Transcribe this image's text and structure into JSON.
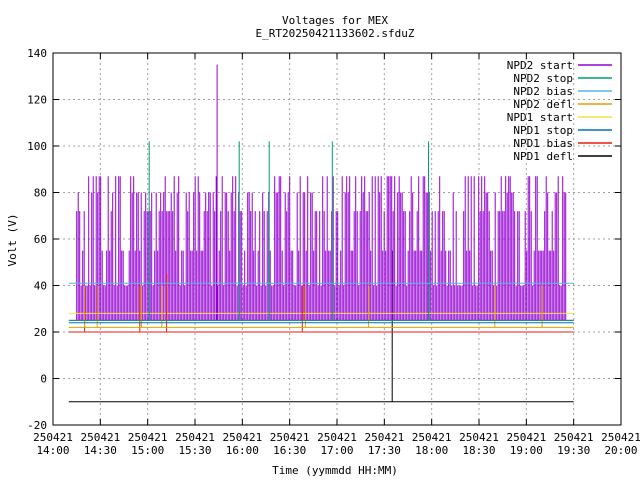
{
  "chart_data": {
    "type": "line",
    "title": "Voltages for MEX",
    "subtitle": "E_RT20250421133602.sfduZ",
    "xlabel": "Time (yymmdd HH:MM)",
    "ylabel": "Volt (V)",
    "xlim": [
      "2025-04-21 14:00",
      "2025-04-21 20:00"
    ],
    "ylim": [
      -20,
      140
    ],
    "grid": true,
    "legend_position": "top-right",
    "x_ticks": [
      {
        "date": "250421",
        "time": "14:00"
      },
      {
        "date": "250421",
        "time": "14:30"
      },
      {
        "date": "250421",
        "time": "15:00"
      },
      {
        "date": "250421",
        "time": "15:30"
      },
      {
        "date": "250421",
        "time": "16:00"
      },
      {
        "date": "250421",
        "time": "16:30"
      },
      {
        "date": "250421",
        "time": "17:00"
      },
      {
        "date": "250421",
        "time": "17:30"
      },
      {
        "date": "250421",
        "time": "18:00"
      },
      {
        "date": "250421",
        "time": "18:30"
      },
      {
        "date": "250421",
        "time": "19:00"
      },
      {
        "date": "250421",
        "time": "19:30"
      },
      {
        "date": "250421",
        "time": "20:00"
      }
    ],
    "y_ticks": [
      "-20",
      "0",
      "20",
      "40",
      "60",
      "80",
      "100",
      "120",
      "140"
    ],
    "series": [
      {
        "name": "NPD2 start",
        "color": "#9400d3",
        "base": 25,
        "levels": [
          87,
          80,
          72,
          55,
          40
        ],
        "spikes": [
          {
            "x": "2025-04-21 15:44",
            "y": 135
          }
        ]
      },
      {
        "name": "NPD2 stop",
        "color": "#009e73",
        "base": 25,
        "spikes": [
          {
            "x": "2025-04-21 15:01",
            "y": 102
          },
          {
            "x": "2025-04-21 15:58",
            "y": 102
          },
          {
            "x": "2025-04-21 16:17",
            "y": 102
          },
          {
            "x": "2025-04-21 16:57",
            "y": 102
          },
          {
            "x": "2025-04-21 17:58",
            "y": 102
          }
        ]
      },
      {
        "name": "NPD2 bias",
        "color": "#56b4e9",
        "base": 41
      },
      {
        "name": "NPD2 defl",
        "color": "#e69f00",
        "base": 22,
        "spikes": [
          {
            "x": "2025-04-21 14:20",
            "y": 40
          },
          {
            "x": "2025-04-21 14:28",
            "y": 40
          },
          {
            "x": "2025-04-21 14:56",
            "y": 40
          },
          {
            "x": "2025-04-21 15:09",
            "y": 40
          },
          {
            "x": "2025-04-21 16:40",
            "y": 40
          },
          {
            "x": "2025-04-21 17:20",
            "y": 40
          },
          {
            "x": "2025-04-21 18:40",
            "y": 40
          },
          {
            "x": "2025-04-21 19:10",
            "y": 40
          }
        ]
      },
      {
        "name": "NPD1 start",
        "color": "#f0e442",
        "base": 28
      },
      {
        "name": "NPD1 stop",
        "color": "#0072b2",
        "base": 24
      },
      {
        "name": "NPD1 bias",
        "color": "#e51e10",
        "base": 20,
        "spikes": [
          {
            "x": "2025-04-21 14:20",
            "y": 35
          },
          {
            "x": "2025-04-21 14:55",
            "y": 40
          },
          {
            "x": "2025-04-21 15:12",
            "y": 45
          },
          {
            "x": "2025-04-21 16:38",
            "y": 40
          }
        ]
      },
      {
        "name": "NPD1 defl",
        "color": "#000000",
        "base": -10,
        "spikes": [
          {
            "x": "2025-04-21 17:35",
            "y": 55
          }
        ]
      }
    ]
  }
}
